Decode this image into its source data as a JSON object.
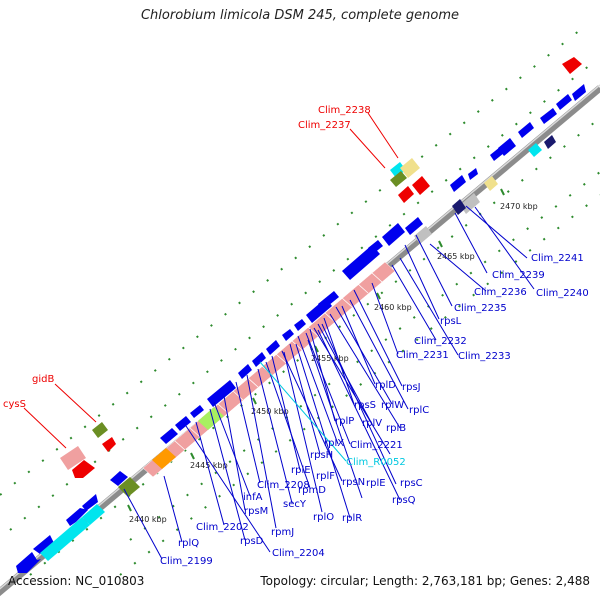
{
  "header": {
    "title": "Chlorobium limicola DSM 245, complete genome"
  },
  "footer": {
    "accession": "Accession: NC_010803",
    "summary": "Topology: circular; Length: 2,763,181 bp; Genes: 2,488"
  },
  "scale_ticks": [
    "2440 kbp",
    "2445 kbp",
    "2450 kbp",
    "2455 kbp",
    "2460 kbp",
    "2465 kbp",
    "2470 kbp"
  ],
  "labels": {
    "red": [
      "Clim_2238",
      "Clim_2237",
      "gidB",
      "cysS"
    ],
    "blue": [
      "Clim_2241",
      "Clim_2239",
      "Clim_2240",
      "Clim_2236",
      "Clim_2235",
      "rpsL",
      "Clim_2232",
      "Clim_2233",
      "Clim_2231",
      "rpsJ",
      "rplD",
      "rplC",
      "rplW",
      "rpsS",
      "rplB",
      "rplV",
      "rplP",
      "rplX",
      "Clim_2221",
      "rpsH",
      "rplE",
      "rpsC",
      "rplF",
      "rpsN",
      "rpsQ",
      "rplE",
      "rpmD",
      "rplO",
      "rplR",
      "secY",
      "infA",
      "Clim_2208",
      "rpsM",
      "rpmJ",
      "Clim_2202",
      "rpsD",
      "rplQ",
      "Clim_2204",
      "Clim_2199"
    ],
    "cyan": [
      "Clim_R0052"
    ]
  },
  "colors": {
    "backbone": "#8c8c8c",
    "gene_forward": "#0000ee",
    "gene_red": "#ee0000",
    "rrna_pink": "#f0a0a0",
    "cyan": "#00e5ee",
    "khaki": "#f0e08c",
    "olive": "#6b8e23",
    "gray": "#c0c0c0",
    "navy": "#1a1a6e",
    "orange": "#ff9900",
    "lime": "#a8f060",
    "tick_green": "#2e8b2e",
    "label_blue": "#0000cc",
    "label_red": "#ee0000"
  }
}
